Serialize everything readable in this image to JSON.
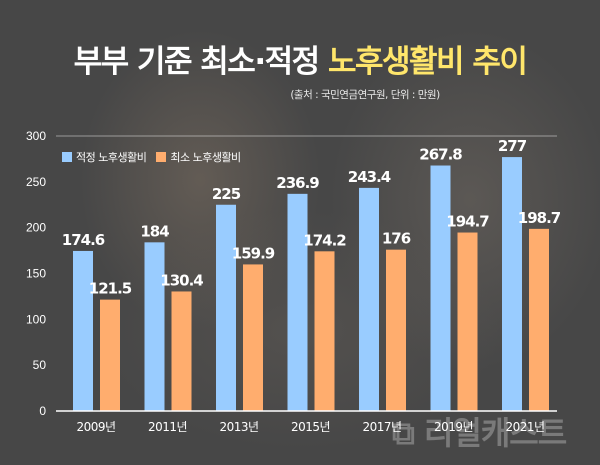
{
  "title": {
    "part1": "부부 기준 최소·적정 ",
    "part2": "노후생활비 추이"
  },
  "subtitle": "(출처 : 국민연금연구원, 단위 : 만원)",
  "watermark": "리얼캐스트",
  "colors": {
    "optimal": "#99ccff",
    "minimum": "#ffad6e",
    "highlight": "#ffe66b"
  },
  "chart_data": {
    "type": "bar",
    "title": "부부 기준 최소·적정 노후생활비 추이",
    "categories": [
      "2009년",
      "2011년",
      "2013년",
      "2015년",
      "2017년",
      "2019년",
      "2021년"
    ],
    "series": [
      {
        "name": "적정 노후생활비",
        "values": [
          174.6,
          184,
          225,
          236.9,
          243.4,
          267.8,
          277
        ]
      },
      {
        "name": "최소 노후생활비",
        "values": [
          121.5,
          130.4,
          159.9,
          174.2,
          176,
          194.7,
          198.7
        ]
      }
    ],
    "value_labels": [
      [
        "174.6",
        "184",
        "225",
        "236.9",
        "243.4",
        "267.8",
        "277"
      ],
      [
        "121.5",
        "130.4",
        "159.9",
        "174.2",
        "176",
        "194.7",
        "198.7"
      ]
    ],
    "yticks": [
      "0",
      "50",
      "100",
      "150",
      "200",
      "250",
      "300"
    ],
    "ylim": [
      0,
      300
    ],
    "xlabel": "",
    "ylabel": "",
    "legend": "top-left"
  }
}
